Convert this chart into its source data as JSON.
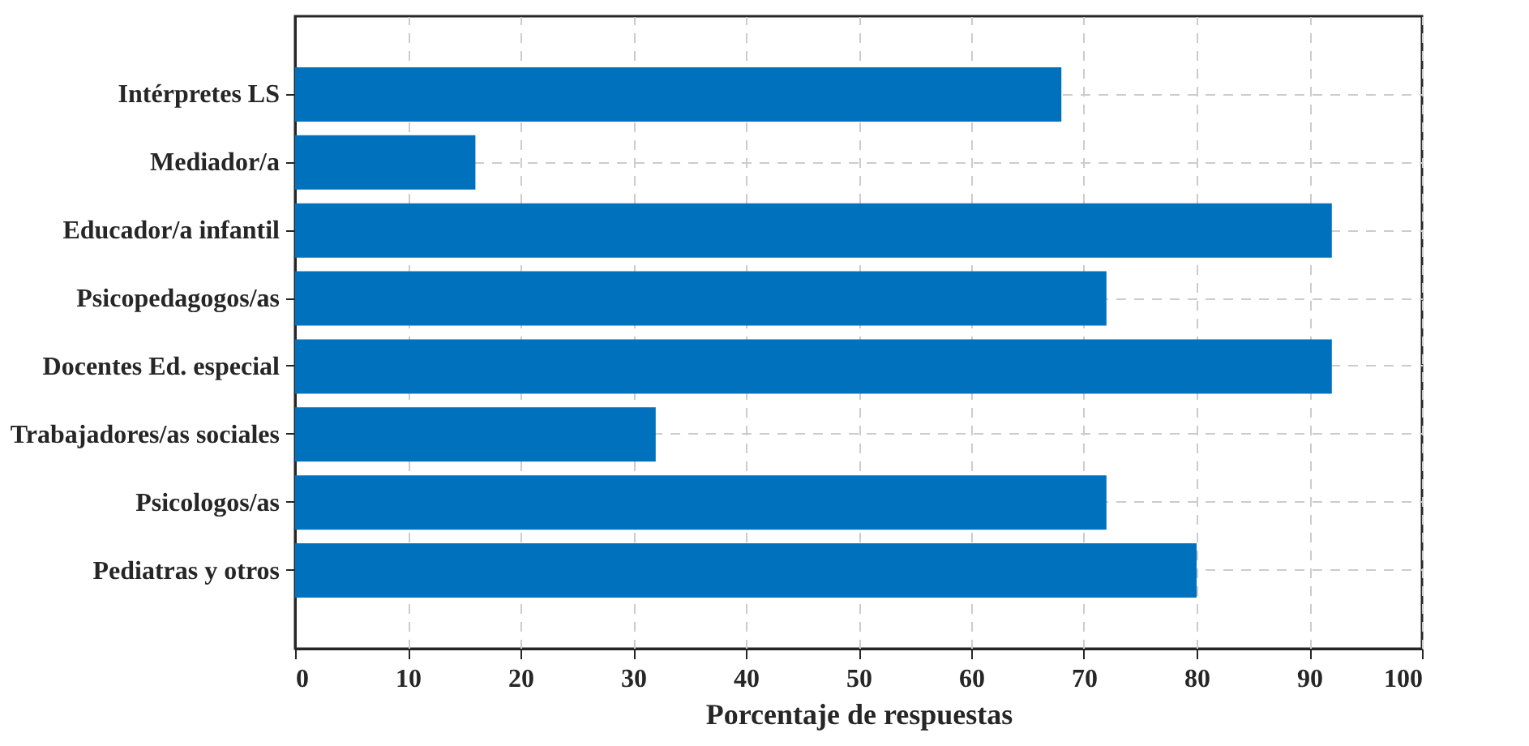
{
  "chart_data": {
    "type": "bar",
    "orientation": "horizontal",
    "xlabel": "Porcentaje de respuestas",
    "categories": [
      "Intérpretes LS",
      "Mediador/a",
      "Educador/a infantil",
      "Psicopedagogos/as",
      "Docentes Ed. especial",
      "Trabajadores/as sociales",
      "Psicologos/as",
      "Pediatras y otros"
    ],
    "values": [
      68,
      16,
      92,
      72,
      92,
      32,
      72,
      80
    ],
    "color": "#0072bd",
    "xlim": [
      0,
      100
    ],
    "xticks": [
      0,
      10,
      20,
      30,
      40,
      50,
      60,
      70,
      80,
      90,
      100
    ],
    "grid": true
  }
}
